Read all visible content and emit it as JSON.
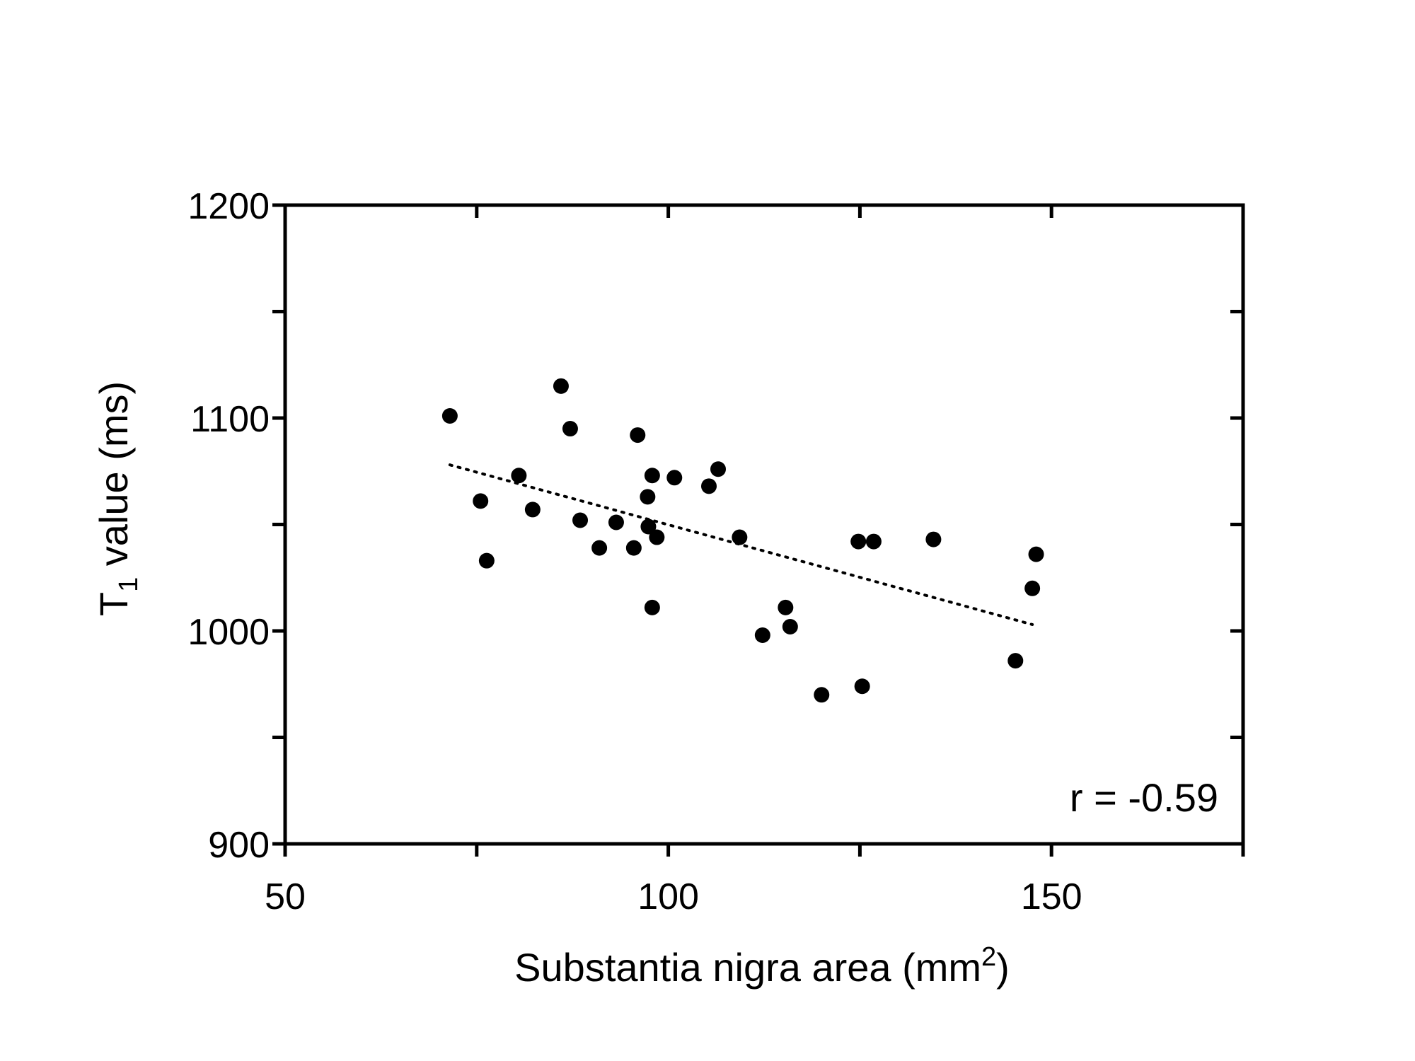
{
  "chart_data": {
    "type": "scatter",
    "xlabel": "Substantia nigra area (mm",
    "xlabel_sup": "2",
    "xlabel_tail": ")",
    "ylabel": "T",
    "ylabel_sub": "1",
    "ylabel_tail": " value (ms)",
    "xlim": [
      50,
      175
    ],
    "ylim": [
      900,
      1200
    ],
    "x_ticks": [
      50,
      100,
      150
    ],
    "x_minor_ticks": [
      75,
      125,
      175
    ],
    "y_ticks": [
      900,
      1000,
      1100,
      1200
    ],
    "y_minor_ticks": [
      950,
      1050,
      1150
    ],
    "annotation": "r = -0.59",
    "series": [
      {
        "points": [
          [
            71.5,
            1101
          ],
          [
            75.5,
            1061
          ],
          [
            76.3,
            1033
          ],
          [
            80.5,
            1073
          ],
          [
            82.3,
            1057
          ],
          [
            86.0,
            1115
          ],
          [
            87.2,
            1095
          ],
          [
            88.5,
            1052
          ],
          [
            91.0,
            1039
          ],
          [
            93.2,
            1051
          ],
          [
            95.5,
            1039
          ],
          [
            96.0,
            1092
          ],
          [
            97.3,
            1063
          ],
          [
            97.4,
            1049
          ],
          [
            97.9,
            1073
          ],
          [
            97.9,
            1011
          ],
          [
            98.5,
            1044
          ],
          [
            100.8,
            1072
          ],
          [
            105.3,
            1068
          ],
          [
            106.5,
            1076
          ],
          [
            109.3,
            1044
          ],
          [
            112.3,
            998
          ],
          [
            115.3,
            1011
          ],
          [
            115.9,
            1002
          ],
          [
            120.0,
            970
          ],
          [
            124.8,
            1042
          ],
          [
            125.3,
            974
          ],
          [
            126.8,
            1042
          ],
          [
            134.6,
            1043
          ],
          [
            145.3,
            986
          ],
          [
            147.5,
            1020
          ],
          [
            148.0,
            1036
          ]
        ]
      }
    ],
    "trendline": {
      "style": "dotted",
      "from": [
        71.5,
        1078
      ],
      "to": [
        147.5,
        1003
      ]
    }
  }
}
